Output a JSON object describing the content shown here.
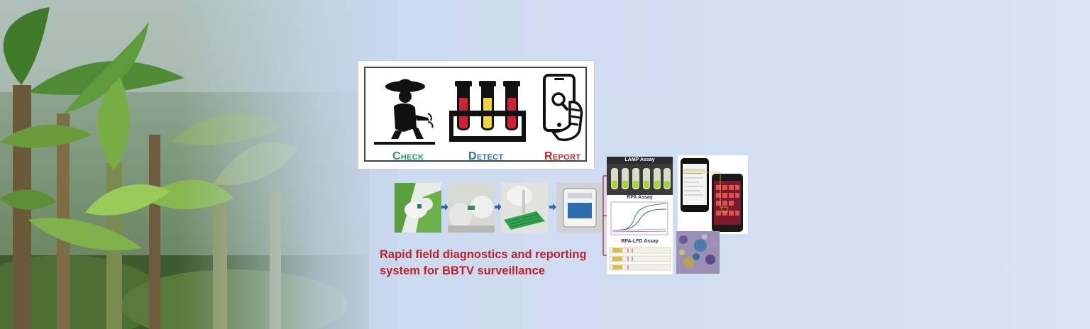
{
  "steps_box": {
    "check_label": "Check",
    "detect_label": "Detect",
    "report_label": "Report"
  },
  "assays": {
    "lamp_title": "LAMP Assay",
    "rpa_title": "RPA Assay",
    "rpa_lfd_title": "RPA-LFD Assay"
  },
  "caption": {
    "line1": "Rapid field diagnostics and reporting",
    "line2": "system for BBTV surveillance"
  },
  "colors": {
    "check": "#1f9d5a",
    "detect": "#2d6fb5",
    "report": "#c9242a",
    "caption": "#c0202a",
    "connector": "#c23a3a"
  }
}
